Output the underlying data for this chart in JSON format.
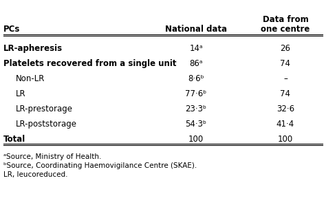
{
  "col_headers": [
    "PCs",
    "National data",
    "Data from\none centre"
  ],
  "rows": [
    {
      "label": "LR-apheresis",
      "indent": false,
      "nat": "14ᵃ",
      "centre": "26"
    },
    {
      "label": "Platelets recovered from a single unit",
      "indent": false,
      "nat": "86ᵃ",
      "centre": "74"
    },
    {
      "label": "Non-LR",
      "indent": true,
      "nat": "8·6ᵇ",
      "centre": "–"
    },
    {
      "label": "LR",
      "indent": true,
      "nat": "77·6ᵇ",
      "centre": "74"
    },
    {
      "label": "LR-prestorage",
      "indent": true,
      "nat": "23·3ᵇ",
      "centre": "32·6"
    },
    {
      "label": "LR-poststorage",
      "indent": true,
      "nat": "54·3ᵇ",
      "centre": "41·4"
    },
    {
      "label": "Total",
      "indent": false,
      "nat": "100",
      "centre": "100"
    }
  ],
  "footnotes": [
    "ᵃSource, Ministry of Health.",
    "ᵇSource, Coordinating Haemovigilance Centre (SKAE).",
    "LR, leucoreduced."
  ],
  "bg_color": "#ffffff",
  "text_color": "#000000",
  "line_color": "#000000",
  "font_size": 8.5,
  "header_font_size": 8.5,
  "footnote_font_size": 7.5
}
